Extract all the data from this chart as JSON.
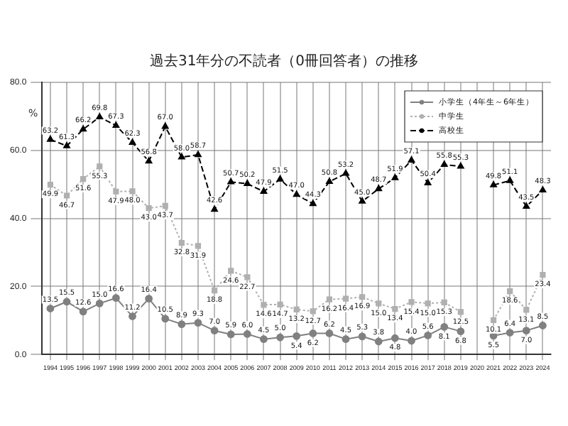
{
  "chart_data": {
    "type": "line",
    "title": "過去31年分の不読者（0冊回答者）の推移",
    "ylabel": "%",
    "categories": [
      "1994",
      "1995",
      "1996",
      "1997",
      "1998",
      "1999",
      "2000",
      "2001",
      "2002",
      "2003",
      "2004",
      "2005",
      "2006",
      "2007",
      "2008",
      "2009",
      "2010",
      "2011",
      "2012",
      "2013",
      "2014",
      "2015",
      "2016",
      "2017",
      "2018",
      "2019",
      "2020",
      "2021",
      "2022",
      "2023",
      "2024"
    ],
    "series": [
      {
        "name": "小学生（4年生～6年生）",
        "color": "#808080",
        "marker": "circle",
        "line_style": "solid",
        "values": [
          13.5,
          15.5,
          12.6,
          15.0,
          16.6,
          11.2,
          16.4,
          10.5,
          8.9,
          9.3,
          7.0,
          5.9,
          6.0,
          4.5,
          5.0,
          5.4,
          6.2,
          6.2,
          4.5,
          5.3,
          3.8,
          4.8,
          4.0,
          5.6,
          8.1,
          6.8,
          null,
          5.5,
          6.4,
          7.0,
          8.5
        ],
        "value_labels": [
          "13.5",
          "15.5",
          "12.6",
          "15.0",
          "16.6",
          "11.2",
          "16.4",
          "10.5",
          "8.9",
          "9.3",
          "7.0",
          "5.9",
          "6.0",
          "4.5",
          "5.0",
          "5.4",
          "6.2",
          "6.2",
          "4.5",
          "5.3",
          "3.8",
          "4.8",
          "4.0",
          "5.6",
          "8.1",
          "6.8",
          null,
          "5.5",
          "6.4",
          "7.0",
          "8.5"
        ]
      },
      {
        "name": "中学生",
        "color": "#b0b0b0",
        "marker": "square",
        "line_style": "dotted",
        "values": [
          49.9,
          46.7,
          51.6,
          55.3,
          47.9,
          48.0,
          43.0,
          43.7,
          32.8,
          31.9,
          18.8,
          24.6,
          22.7,
          14.6,
          14.7,
          13.2,
          12.7,
          16.2,
          16.4,
          16.9,
          15.0,
          13.4,
          15.4,
          15.0,
          15.3,
          12.5,
          null,
          10.1,
          18.6,
          13.1,
          23.4
        ],
        "value_labels": [
          "49.9",
          "46.7",
          "51.6",
          "55.3",
          "47.9",
          "48.0",
          "43.0",
          "43.7",
          "32.8",
          "31.9",
          "18.8",
          "24.6",
          "22.7",
          "14.6",
          "14.7",
          "13.2",
          "12.7",
          "16.2",
          "16.4",
          "16.9",
          "15.0",
          "13.4",
          "15.4",
          "15.0",
          "15.3",
          "12.5",
          null,
          "10.1",
          "18.6",
          "13.1",
          "23.4"
        ]
      },
      {
        "name": "高校生",
        "color": "#000000",
        "marker": "triangle",
        "line_style": "dashed",
        "values": [
          63.2,
          61.3,
          66.2,
          69.8,
          67.3,
          62.3,
          56.8,
          67.0,
          58.0,
          58.7,
          42.6,
          50.7,
          50.2,
          47.9,
          51.5,
          47.0,
          44.3,
          50.8,
          53.2,
          45.0,
          48.7,
          51.9,
          57.1,
          50.4,
          55.8,
          55.3,
          null,
          49.8,
          51.1,
          43.5,
          48.3
        ],
        "value_labels": [
          "63.2",
          "61.3",
          "66.2",
          "69.8",
          "67.3",
          "62.3",
          "56.8",
          "67.0",
          "58.0",
          "58.7",
          "42.6",
          "50.7",
          "50.2",
          "47.9",
          "51.5",
          "47.0",
          "44.3",
          "50.8",
          "53.2",
          "45.0",
          "48.7",
          "51.9",
          "57.1",
          "50.4",
          "55.8",
          "55.3",
          null,
          "49.8",
          "51.1",
          "43.5",
          "48.3"
        ]
      }
    ],
    "ylim": [
      0,
      80
    ],
    "yticks": [
      {
        "value": 0,
        "label": "0.0"
      },
      {
        "value": 20,
        "label": "20.0"
      },
      {
        "value": 40,
        "label": "40.0"
      },
      {
        "value": 60,
        "label": "60.0"
      },
      {
        "value": 80,
        "label": "80.0"
      }
    ],
    "grid": true,
    "legend": "top right",
    "data_labels": true
  }
}
